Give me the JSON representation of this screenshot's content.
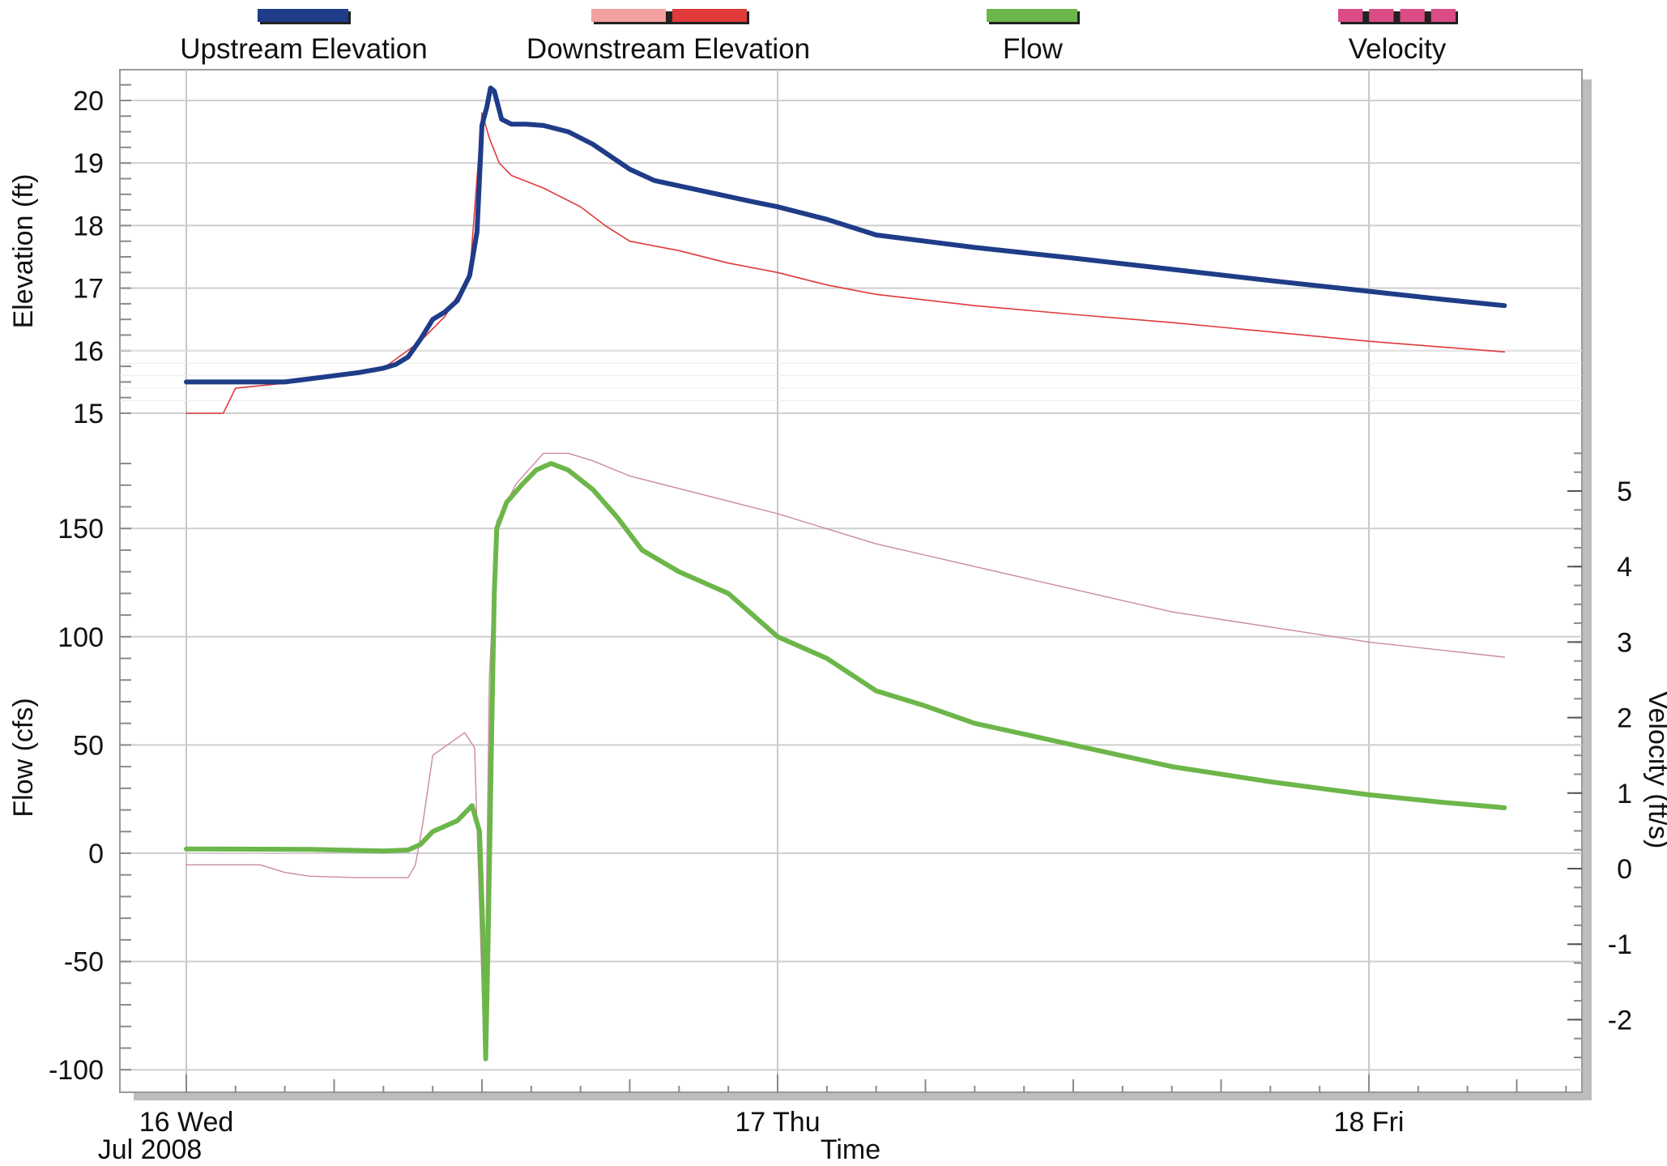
{
  "chart_data": {
    "type": "line",
    "legend": {
      "placement": "top",
      "entries": [
        {
          "label": "Upstream Elevation",
          "color": "#1f3c88",
          "style": "solid-thick"
        },
        {
          "label": "Downstream Elevation",
          "color": "#e03a3a",
          "style": "solid-thin"
        },
        {
          "label": "Flow",
          "color": "#6cb64a",
          "style": "solid-thick"
        },
        {
          "label": "Velocity",
          "color": "#d94c86",
          "style": "dashed"
        }
      ]
    },
    "x_axis": {
      "label": "Time",
      "range_hours": [
        -1,
        60
      ],
      "ticks": [
        {
          "hour": 0,
          "label": "16 Wed"
        },
        {
          "hour": 24,
          "label": "17 Thu"
        },
        {
          "hour": 48,
          "label": "18 Fri"
        }
      ],
      "sublabel": "Jul 2008",
      "grid": true
    },
    "elevation_axis": {
      "label": "Elevation (ft)",
      "ylim": [
        15,
        20.25
      ],
      "ticks": [
        15,
        16,
        17,
        18,
        19,
        20
      ]
    },
    "flow_axis": {
      "label": "Flow (cfs)",
      "ylim": [
        -105,
        185
      ],
      "ticks": [
        -100,
        -50,
        0,
        50,
        100,
        150
      ]
    },
    "velocity_axis": {
      "label": "Velocity (ft/s)",
      "ticks": [
        -2,
        -1,
        0,
        1,
        2,
        3,
        4,
        5
      ]
    },
    "series": [
      {
        "name": "Upstream Elevation",
        "axis": "elevation",
        "color": "#1f3c88",
        "points": [
          [
            0,
            15.5
          ],
          [
            4,
            15.5
          ],
          [
            6,
            15.6
          ],
          [
            7,
            15.65
          ],
          [
            8,
            15.72
          ],
          [
            8.5,
            15.78
          ],
          [
            9,
            15.9
          ],
          [
            9.5,
            16.18
          ],
          [
            10,
            16.5
          ],
          [
            10.5,
            16.62
          ],
          [
            11,
            16.8
          ],
          [
            11.5,
            17.2
          ],
          [
            11.8,
            17.9
          ],
          [
            12,
            19.6
          ],
          [
            12.2,
            19.9
          ],
          [
            12.35,
            20.2
          ],
          [
            12.5,
            20.15
          ],
          [
            12.8,
            19.7
          ],
          [
            13.2,
            19.62
          ],
          [
            13.8,
            19.62
          ],
          [
            14.5,
            19.6
          ],
          [
            15.5,
            19.5
          ],
          [
            16.5,
            19.3
          ],
          [
            18,
            18.9
          ],
          [
            19,
            18.72
          ],
          [
            21,
            18.55
          ],
          [
            23,
            18.38
          ],
          [
            24,
            18.3
          ],
          [
            26,
            18.1
          ],
          [
            28,
            17.85
          ],
          [
            32,
            17.65
          ],
          [
            36,
            17.48
          ],
          [
            40,
            17.3
          ],
          [
            44,
            17.12
          ],
          [
            48,
            16.95
          ],
          [
            51,
            16.82
          ],
          [
            53.5,
            16.72
          ]
        ]
      },
      {
        "name": "Downstream Elevation",
        "axis": "elevation",
        "color": "#e03a3a",
        "points": [
          [
            0,
            15.0
          ],
          [
            1.5,
            15.0
          ],
          [
            2,
            15.4
          ],
          [
            4,
            15.48
          ],
          [
            6,
            15.58
          ],
          [
            8,
            15.72
          ],
          [
            9.5,
            16.15
          ],
          [
            10.5,
            16.55
          ],
          [
            11.5,
            17.2
          ],
          [
            12,
            19.8
          ],
          [
            12.3,
            19.4
          ],
          [
            12.7,
            19.0
          ],
          [
            13.2,
            18.8
          ],
          [
            14.5,
            18.6
          ],
          [
            16,
            18.3
          ],
          [
            17,
            18.0
          ],
          [
            18,
            17.75
          ],
          [
            20,
            17.6
          ],
          [
            22,
            17.4
          ],
          [
            24,
            17.25
          ],
          [
            26,
            17.05
          ],
          [
            28,
            16.9
          ],
          [
            32,
            16.72
          ],
          [
            36,
            16.58
          ],
          [
            40,
            16.45
          ],
          [
            44,
            16.3
          ],
          [
            48,
            16.15
          ],
          [
            53.5,
            15.98
          ]
        ]
      },
      {
        "name": "Flow",
        "axis": "flow",
        "color": "#6cb64a",
        "points": [
          [
            0,
            2
          ],
          [
            5,
            1.8
          ],
          [
            8,
            1
          ],
          [
            9,
            1.5
          ],
          [
            9.5,
            4
          ],
          [
            10,
            10
          ],
          [
            11,
            15
          ],
          [
            11.6,
            22
          ],
          [
            11.9,
            10
          ],
          [
            12.05,
            -40
          ],
          [
            12.15,
            -95
          ],
          [
            12.25,
            -40
          ],
          [
            12.4,
            60
          ],
          [
            12.5,
            120
          ],
          [
            12.6,
            150
          ],
          [
            13,
            162
          ],
          [
            13.6,
            170
          ],
          [
            14.2,
            177
          ],
          [
            14.8,
            180
          ],
          [
            15.5,
            177
          ],
          [
            16.5,
            168
          ],
          [
            17.5,
            155
          ],
          [
            18.5,
            140
          ],
          [
            20,
            130
          ],
          [
            22,
            120
          ],
          [
            24,
            100
          ],
          [
            26,
            90
          ],
          [
            28,
            75
          ],
          [
            30,
            68
          ],
          [
            32,
            60
          ],
          [
            34,
            55
          ],
          [
            36,
            50
          ],
          [
            40,
            40
          ],
          [
            44,
            33
          ],
          [
            48,
            27
          ],
          [
            51,
            23.5
          ],
          [
            53.5,
            21
          ]
        ]
      },
      {
        "name": "Velocity",
        "axis": "velocity",
        "color": "#d94c86",
        "points": [
          [
            0,
            0.05
          ],
          [
            3,
            0.05
          ],
          [
            4,
            -0.05
          ],
          [
            5,
            -0.1
          ],
          [
            7,
            -0.12
          ],
          [
            9,
            -0.12
          ],
          [
            9.3,
            0.05
          ],
          [
            9.6,
            0.6
          ],
          [
            10,
            1.5
          ],
          [
            11.3,
            1.8
          ],
          [
            11.7,
            1.6
          ],
          [
            12.1,
            -2.5
          ],
          [
            12.3,
            2.5
          ],
          [
            12.6,
            4.6
          ],
          [
            13.4,
            5.1
          ],
          [
            14.5,
            5.5
          ],
          [
            15.5,
            5.5
          ],
          [
            16.5,
            5.4
          ],
          [
            18,
            5.2
          ],
          [
            24,
            4.7
          ],
          [
            28,
            4.3
          ],
          [
            32,
            4.0
          ],
          [
            36,
            3.7
          ],
          [
            40,
            3.4
          ],
          [
            44,
            3.2
          ],
          [
            48,
            3.0
          ],
          [
            53.5,
            2.8
          ]
        ]
      }
    ]
  }
}
